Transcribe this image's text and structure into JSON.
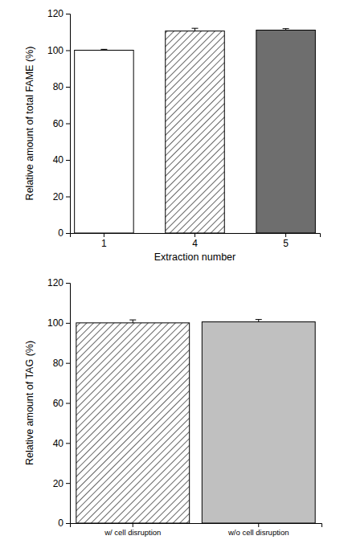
{
  "chart_data": [
    {
      "type": "bar",
      "x_label": "Extraction number",
      "y_label": "Relative amount of total FAME (%)",
      "categories": [
        "1",
        "4",
        "5"
      ],
      "values": [
        100,
        110.5,
        111
      ],
      "errors": [
        0.5,
        1.5,
        0.8
      ],
      "colors": [
        "#ffffff",
        "url(#hatch)",
        "#6e6e6e"
      ],
      "ylim": [
        0,
        120
      ],
      "yticks": [
        0,
        20,
        40,
        60,
        80,
        100,
        120
      ]
    },
    {
      "type": "bar",
      "y_label": "Relative amount of TAG (%)",
      "categories": [
        "w/ cell disruption",
        "w/o cell disruption"
      ],
      "values": [
        100,
        100.5
      ],
      "errors": [
        1.5,
        1.2
      ],
      "colors": [
        "url(#hatch)",
        "#c0c0c0"
      ],
      "ylim": [
        0,
        120
      ],
      "yticks": [
        0,
        20,
        40,
        60,
        80,
        100,
        120
      ]
    }
  ]
}
